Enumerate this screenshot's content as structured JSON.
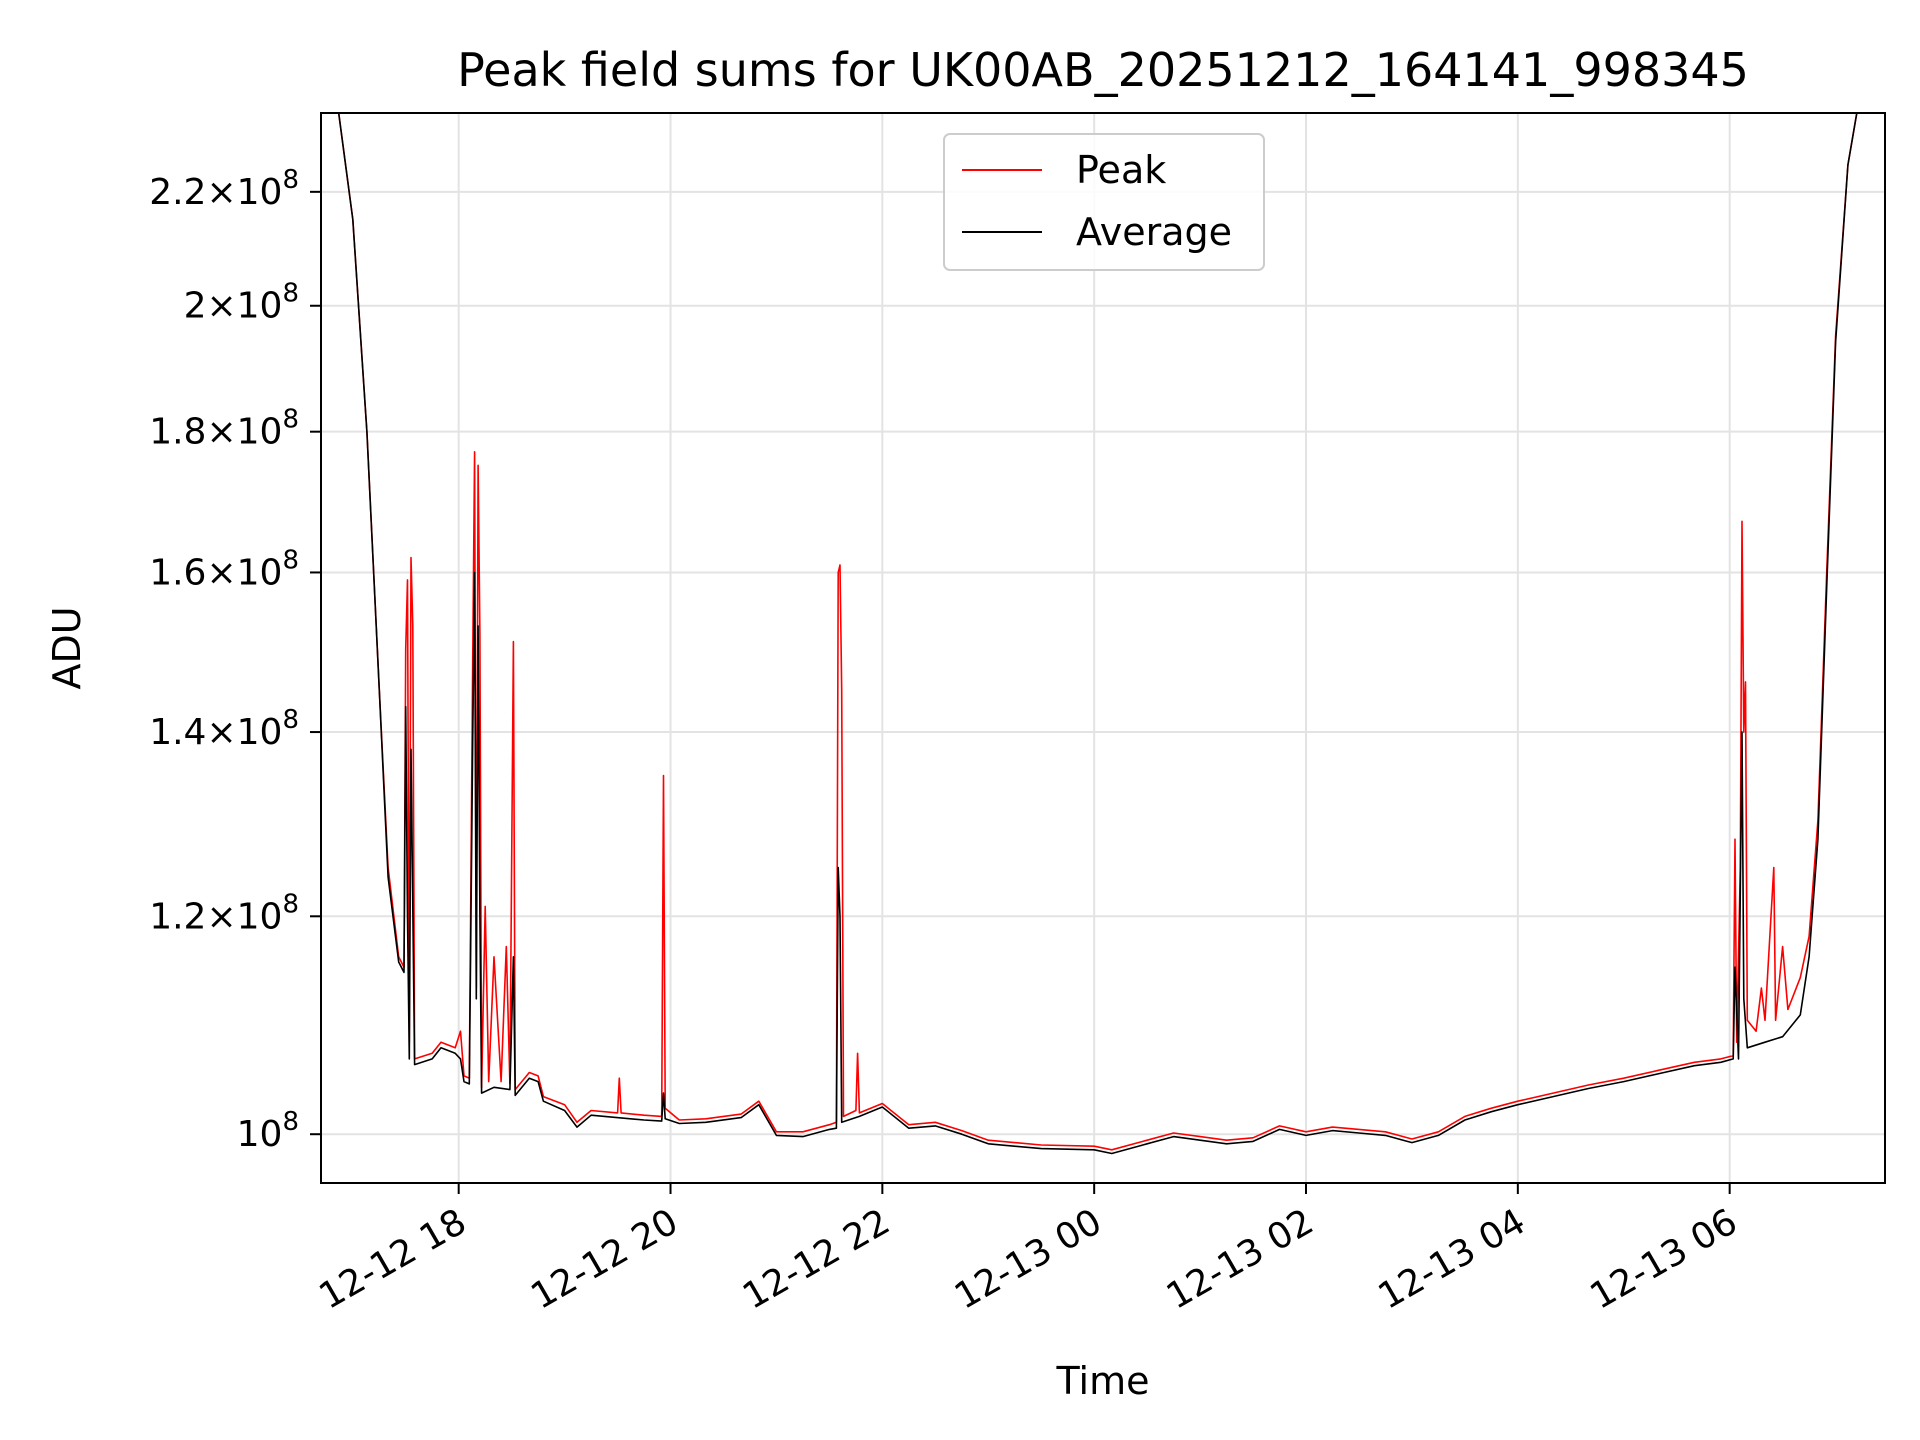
{
  "chart_data": {
    "type": "line",
    "title": "Peak field sums for UK00AB_20251212_164141_998345",
    "xlabel": "Time",
    "ylabel": "ADU",
    "yscale": "log",
    "ylim": [
      96000000,
      235000000
    ],
    "xlim": [
      "2025-12-12T16:42",
      "2025-12-13T07:28"
    ],
    "grid": true,
    "legend": {
      "location": "upper center"
    },
    "x_ticks": [
      {
        "value": "2025-12-12T18:00",
        "label": "12-12 18"
      },
      {
        "value": "2025-12-12T20:00",
        "label": "12-12 20"
      },
      {
        "value": "2025-12-12T22:00",
        "label": "12-12 22"
      },
      {
        "value": "2025-12-13T00:00",
        "label": "12-13 00"
      },
      {
        "value": "2025-12-13T02:00",
        "label": "12-13 02"
      },
      {
        "value": "2025-12-13T04:00",
        "label": "12-13 04"
      },
      {
        "value": "2025-12-13T06:00",
        "label": "12-13 06"
      }
    ],
    "y_ticks": [
      {
        "value": 100000000,
        "mantissa": "",
        "exponent": "8"
      },
      {
        "value": 120000000,
        "mantissa": "1.2",
        "exponent": "8"
      },
      {
        "value": 140000000,
        "mantissa": "1.4",
        "exponent": "8"
      },
      {
        "value": 160000000,
        "mantissa": "1.6",
        "exponent": "8"
      },
      {
        "value": 180000000,
        "mantissa": "1.8",
        "exponent": "8"
      },
      {
        "value": 200000000,
        "mantissa": "2",
        "exponent": "8"
      },
      {
        "value": 220000000,
        "mantissa": "2.2",
        "exponent": "8"
      }
    ],
    "series": [
      {
        "name": "Peak",
        "color": "#ff0000",
        "points": [
          [
            "2025-12-12T16:42",
            235000000
          ],
          [
            "2025-12-12T16:52",
            235000000
          ],
          [
            "2025-12-12T17:00",
            215000000
          ],
          [
            "2025-12-12T17:08",
            180000000
          ],
          [
            "2025-12-12T17:15",
            145000000
          ],
          [
            "2025-12-12T17:20",
            125000000
          ],
          [
            "2025-12-12T17:26",
            116000000
          ],
          [
            "2025-12-12T17:29",
            115000000
          ],
          [
            "2025-12-12T17:30",
            150000000
          ],
          [
            "2025-12-12T17:31",
            159000000
          ],
          [
            "2025-12-12T17:32",
            108000000
          ],
          [
            "2025-12-12T17:33",
            162000000
          ],
          [
            "2025-12-12T17:34",
            153000000
          ],
          [
            "2025-12-12T17:35",
            106500000
          ],
          [
            "2025-12-12T17:45",
            107000000
          ],
          [
            "2025-12-12T17:50",
            108000000
          ],
          [
            "2025-12-12T17:58",
            107500000
          ],
          [
            "2025-12-12T18:01",
            109000000
          ],
          [
            "2025-12-12T18:03",
            105000000
          ],
          [
            "2025-12-12T18:06",
            104800000
          ],
          [
            "2025-12-12T18:08",
            150000000
          ],
          [
            "2025-12-12T18:09",
            177000000
          ],
          [
            "2025-12-12T18:10",
            113000000
          ],
          [
            "2025-12-12T18:11",
            175000000
          ],
          [
            "2025-12-12T18:12",
            152000000
          ],
          [
            "2025-12-12T18:13",
            104000000
          ],
          [
            "2025-12-12T18:15",
            121000000
          ],
          [
            "2025-12-12T18:17",
            104500000
          ],
          [
            "2025-12-12T18:20",
            116000000
          ],
          [
            "2025-12-12T18:24",
            104500000
          ],
          [
            "2025-12-12T18:27",
            117000000
          ],
          [
            "2025-12-12T18:29",
            104300000
          ],
          [
            "2025-12-12T18:31",
            151000000
          ],
          [
            "2025-12-12T18:32",
            103800000
          ],
          [
            "2025-12-12T18:40",
            105300000
          ],
          [
            "2025-12-12T18:45",
            105000000
          ],
          [
            "2025-12-12T18:48",
            103200000
          ],
          [
            "2025-12-12T19:00",
            102500000
          ],
          [
            "2025-12-12T19:07",
            101000000
          ],
          [
            "2025-12-12T19:15",
            102000000
          ],
          [
            "2025-12-12T19:30",
            101800000
          ],
          [
            "2025-12-12T19:31",
            104800000
          ],
          [
            "2025-12-12T19:32",
            101800000
          ],
          [
            "2025-12-12T19:45",
            101600000
          ],
          [
            "2025-12-12T19:55",
            101500000
          ],
          [
            "2025-12-12T19:56",
            135000000
          ],
          [
            "2025-12-12T19:57",
            102200000
          ],
          [
            "2025-12-12T20:05",
            101200000
          ],
          [
            "2025-12-12T20:20",
            101300000
          ],
          [
            "2025-12-12T20:40",
            101700000
          ],
          [
            "2025-12-12T20:50",
            102800000
          ],
          [
            "2025-12-12T21:00",
            100200000
          ],
          [
            "2025-12-12T21:15",
            100200000
          ],
          [
            "2025-12-12T21:30",
            100800000
          ],
          [
            "2025-12-12T21:34",
            101000000
          ],
          [
            "2025-12-12T21:35",
            160000000
          ],
          [
            "2025-12-12T21:36",
            161000000
          ],
          [
            "2025-12-12T21:37",
            145000000
          ],
          [
            "2025-12-12T21:38",
            101500000
          ],
          [
            "2025-12-12T21:45",
            102000000
          ],
          [
            "2025-12-12T21:46",
            107000000
          ],
          [
            "2025-12-12T21:47",
            101800000
          ],
          [
            "2025-12-12T22:00",
            102600000
          ],
          [
            "2025-12-12T22:15",
            100800000
          ],
          [
            "2025-12-12T22:30",
            101000000
          ],
          [
            "2025-12-12T22:45",
            100300000
          ],
          [
            "2025-12-12T23:00",
            99500000
          ],
          [
            "2025-12-12T23:30",
            99100000
          ],
          [
            "2025-12-13T00:00",
            99000000
          ],
          [
            "2025-12-13T00:10",
            98700000
          ],
          [
            "2025-12-13T00:30",
            99500000
          ],
          [
            "2025-12-13T00:45",
            100100000
          ],
          [
            "2025-12-13T01:00",
            99800000
          ],
          [
            "2025-12-13T01:15",
            99500000
          ],
          [
            "2025-12-13T01:30",
            99700000
          ],
          [
            "2025-12-13T01:45",
            100700000
          ],
          [
            "2025-12-13T02:00",
            100200000
          ],
          [
            "2025-12-13T02:15",
            100600000
          ],
          [
            "2025-12-13T02:30",
            100400000
          ],
          [
            "2025-12-13T02:45",
            100200000
          ],
          [
            "2025-12-13T03:00",
            99600000
          ],
          [
            "2025-12-13T03:15",
            100200000
          ],
          [
            "2025-12-13T03:30",
            101500000
          ],
          [
            "2025-12-13T03:45",
            102200000
          ],
          [
            "2025-12-13T04:00",
            102800000
          ],
          [
            "2025-12-13T04:20",
            103500000
          ],
          [
            "2025-12-13T04:40",
            104200000
          ],
          [
            "2025-12-13T05:00",
            104800000
          ],
          [
            "2025-12-13T05:20",
            105500000
          ],
          [
            "2025-12-13T05:40",
            106200000
          ],
          [
            "2025-12-13T05:55",
            106500000
          ],
          [
            "2025-12-13T06:02",
            106800000
          ],
          [
            "2025-12-13T06:03",
            128000000
          ],
          [
            "2025-12-13T06:04",
            108000000
          ],
          [
            "2025-12-13T06:06",
            125000000
          ],
          [
            "2025-12-13T06:07",
            167000000
          ],
          [
            "2025-12-13T06:08",
            140000000
          ],
          [
            "2025-12-13T06:09",
            146000000
          ],
          [
            "2025-12-13T06:10",
            110000000
          ],
          [
            "2025-12-13T06:15",
            109000000
          ],
          [
            "2025-12-13T06:18",
            113000000
          ],
          [
            "2025-12-13T06:20",
            110000000
          ],
          [
            "2025-12-13T06:25",
            125000000
          ],
          [
            "2025-12-13T06:26",
            110000000
          ],
          [
            "2025-12-13T06:30",
            117000000
          ],
          [
            "2025-12-13T06:33",
            111000000
          ],
          [
            "2025-12-13T06:40",
            114000000
          ],
          [
            "2025-12-13T06:45",
            118000000
          ],
          [
            "2025-12-13T06:50",
            130000000
          ],
          [
            "2025-12-13T06:55",
            160000000
          ],
          [
            "2025-12-13T07:00",
            195000000
          ],
          [
            "2025-12-13T07:07",
            225000000
          ],
          [
            "2025-12-13T07:12",
            235000000
          ],
          [
            "2025-12-13T07:28",
            235000000
          ]
        ]
      },
      {
        "name": "Average",
        "color": "#000000",
        "points": [
          [
            "2025-12-12T16:42",
            235000000
          ],
          [
            "2025-12-12T16:52",
            235000000
          ],
          [
            "2025-12-12T17:00",
            215000000
          ],
          [
            "2025-12-12T17:08",
            180000000
          ],
          [
            "2025-12-12T17:15",
            145000000
          ],
          [
            "2025-12-12T17:20",
            124000000
          ],
          [
            "2025-12-12T17:26",
            115500000
          ],
          [
            "2025-12-12T17:29",
            114500000
          ],
          [
            "2025-12-12T17:30",
            143000000
          ],
          [
            "2025-12-12T17:31",
            120000000
          ],
          [
            "2025-12-12T17:32",
            106500000
          ],
          [
            "2025-12-12T17:33",
            138000000
          ],
          [
            "2025-12-12T17:35",
            106000000
          ],
          [
            "2025-12-12T17:45",
            106500000
          ],
          [
            "2025-12-12T17:50",
            107500000
          ],
          [
            "2025-12-12T17:58",
            107000000
          ],
          [
            "2025-12-12T18:01",
            106500000
          ],
          [
            "2025-12-12T18:03",
            104500000
          ],
          [
            "2025-12-12T18:06",
            104300000
          ],
          [
            "2025-12-12T18:08",
            140000000
          ],
          [
            "2025-12-12T18:09",
            160000000
          ],
          [
            "2025-12-12T18:10",
            112000000
          ],
          [
            "2025-12-12T18:11",
            153000000
          ],
          [
            "2025-12-12T18:12",
            120000000
          ],
          [
            "2025-12-12T18:13",
            103500000
          ],
          [
            "2025-12-12T18:20",
            104000000
          ],
          [
            "2025-12-12T18:29",
            103800000
          ],
          [
            "2025-12-12T18:31",
            116000000
          ],
          [
            "2025-12-12T18:32",
            103300000
          ],
          [
            "2025-12-12T18:40",
            104800000
          ],
          [
            "2025-12-12T18:45",
            104500000
          ],
          [
            "2025-12-12T18:48",
            102800000
          ],
          [
            "2025-12-12T19:00",
            102000000
          ],
          [
            "2025-12-12T19:07",
            100600000
          ],
          [
            "2025-12-12T19:15",
            101600000
          ],
          [
            "2025-12-12T19:45",
            101200000
          ],
          [
            "2025-12-12T19:55",
            101100000
          ],
          [
            "2025-12-12T19:56",
            103500000
          ],
          [
            "2025-12-12T19:57",
            101300000
          ],
          [
            "2025-12-12T20:05",
            100900000
          ],
          [
            "2025-12-12T20:20",
            101000000
          ],
          [
            "2025-12-12T20:40",
            101400000
          ],
          [
            "2025-12-12T20:50",
            102500000
          ],
          [
            "2025-12-12T21:00",
            99900000
          ],
          [
            "2025-12-12T21:15",
            99800000
          ],
          [
            "2025-12-12T21:30",
            100400000
          ],
          [
            "2025-12-12T21:34",
            100500000
          ],
          [
            "2025-12-12T21:35",
            125000000
          ],
          [
            "2025-12-12T21:36",
            120000000
          ],
          [
            "2025-12-12T21:37",
            101000000
          ],
          [
            "2025-12-12T21:47",
            101500000
          ],
          [
            "2025-12-12T22:00",
            102300000
          ],
          [
            "2025-12-12T22:15",
            100500000
          ],
          [
            "2025-12-12T22:30",
            100700000
          ],
          [
            "2025-12-12T22:45",
            100000000
          ],
          [
            "2025-12-12T23:00",
            99200000
          ],
          [
            "2025-12-12T23:30",
            98800000
          ],
          [
            "2025-12-13T00:00",
            98700000
          ],
          [
            "2025-12-13T00:10",
            98400000
          ],
          [
            "2025-12-13T00:30",
            99200000
          ],
          [
            "2025-12-13T00:45",
            99800000
          ],
          [
            "2025-12-13T01:00",
            99500000
          ],
          [
            "2025-12-13T01:15",
            99200000
          ],
          [
            "2025-12-13T01:30",
            99400000
          ],
          [
            "2025-12-13T01:45",
            100400000
          ],
          [
            "2025-12-13T02:00",
            99900000
          ],
          [
            "2025-12-13T02:15",
            100300000
          ],
          [
            "2025-12-13T02:30",
            100100000
          ],
          [
            "2025-12-13T02:45",
            99900000
          ],
          [
            "2025-12-13T03:00",
            99300000
          ],
          [
            "2025-12-13T03:15",
            99900000
          ],
          [
            "2025-12-13T03:30",
            101200000
          ],
          [
            "2025-12-13T03:45",
            101900000
          ],
          [
            "2025-12-13T04:00",
            102500000
          ],
          [
            "2025-12-13T04:20",
            103200000
          ],
          [
            "2025-12-13T04:40",
            103900000
          ],
          [
            "2025-12-13T05:00",
            104500000
          ],
          [
            "2025-12-13T05:20",
            105200000
          ],
          [
            "2025-12-13T05:40",
            105900000
          ],
          [
            "2025-12-13T05:55",
            106200000
          ],
          [
            "2025-12-13T06:02",
            106500000
          ],
          [
            "2025-12-13T06:03",
            115000000
          ],
          [
            "2025-12-13T06:05",
            106500000
          ],
          [
            "2025-12-13T06:07",
            140000000
          ],
          [
            "2025-12-13T06:08",
            112000000
          ],
          [
            "2025-12-13T06:10",
            107500000
          ],
          [
            "2025-12-13T06:20",
            108000000
          ],
          [
            "2025-12-13T06:30",
            108500000
          ],
          [
            "2025-12-13T06:40",
            110500000
          ],
          [
            "2025-12-13T06:45",
            116000000
          ],
          [
            "2025-12-13T06:50",
            128000000
          ],
          [
            "2025-12-13T06:55",
            158000000
          ],
          [
            "2025-12-13T07:00",
            194000000
          ],
          [
            "2025-12-13T07:07",
            225000000
          ],
          [
            "2025-12-13T07:12",
            235000000
          ],
          [
            "2025-12-13T07:28",
            235000000
          ]
        ]
      }
    ]
  }
}
